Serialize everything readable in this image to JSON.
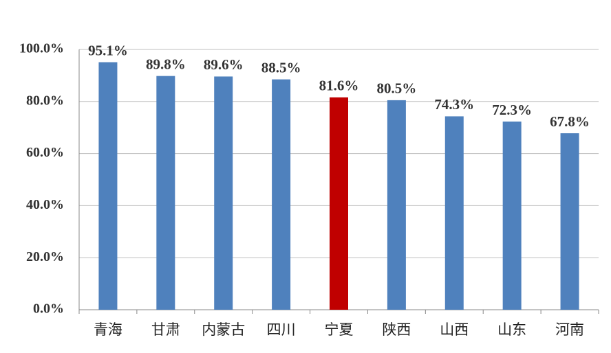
{
  "chart_data": {
    "type": "bar",
    "categories": [
      "青海",
      "甘肃",
      "内蒙古",
      "四川",
      "宁夏",
      "陕西",
      "山西",
      "山东",
      "河南"
    ],
    "values": [
      95.1,
      89.8,
      89.6,
      88.5,
      81.6,
      80.5,
      74.3,
      72.3,
      67.8
    ],
    "value_labels": [
      "95.1%",
      "89.8%",
      "89.6%",
      "88.5%",
      "81.6%",
      "80.5%",
      "74.3%",
      "72.3%",
      "67.8%"
    ],
    "colors": [
      "#4f81bd",
      "#4f81bd",
      "#4f81bd",
      "#4f81bd",
      "#c00000",
      "#4f81bd",
      "#4f81bd",
      "#4f81bd",
      "#4f81bd"
    ],
    "ylim": [
      0,
      100
    ],
    "yticks": [
      {
        "value": 0,
        "label": "0.0%"
      },
      {
        "value": 20,
        "label": "20.0%"
      },
      {
        "value": 40,
        "label": "40.0%"
      },
      {
        "value": 60,
        "label": "60.0%"
      },
      {
        "value": 80,
        "label": "80.0%"
      },
      {
        "value": 100,
        "label": "100.0%"
      }
    ],
    "grid": true
  }
}
